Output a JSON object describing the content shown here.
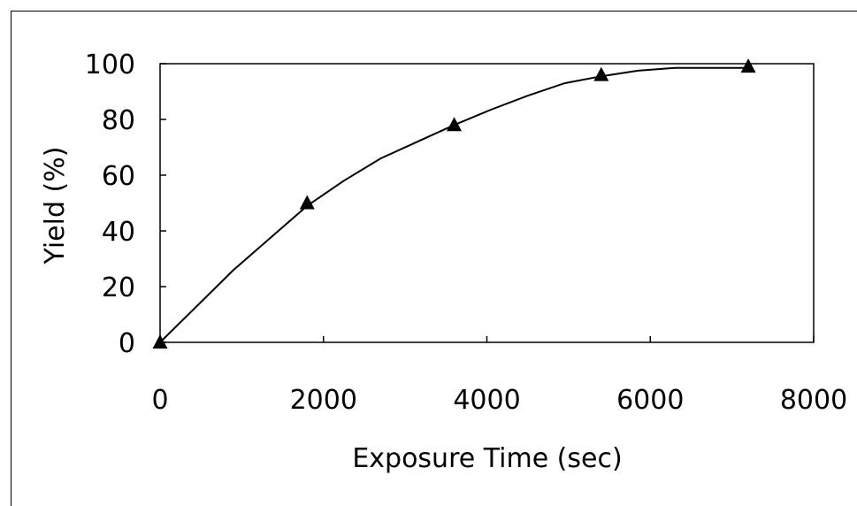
{
  "chart_data": {
    "type": "line",
    "title": "",
    "xlabel": "Exposure Time (sec)",
    "ylabel": "Yield (%)",
    "xlim": [
      0,
      8000
    ],
    "ylim": [
      0,
      100
    ],
    "x_ticks": [
      0,
      2000,
      4000,
      6000,
      8000
    ],
    "y_ticks": [
      0,
      20,
      40,
      60,
      80,
      100
    ],
    "grid": false,
    "legend": "none",
    "series": [
      {
        "role": "measured",
        "marker": "triangle",
        "x": [
          0,
          1800,
          3600,
          5400,
          7200
        ],
        "y": [
          0,
          50,
          78,
          96,
          99
        ]
      },
      {
        "role": "fitted-curve",
        "marker": "none",
        "x": [
          0,
          900,
          1800,
          2250,
          2700,
          3150,
          3600,
          4050,
          4500,
          4950,
          5400,
          5850,
          6300,
          6750,
          7200
        ],
        "y": [
          0,
          26,
          49,
          58,
          66,
          72,
          78,
          83.5,
          88.5,
          93,
          95.5,
          97.5,
          98.5,
          98.5,
          98.5
        ]
      }
    ],
    "colors": {
      "line": "#000000",
      "marker": "#000000",
      "axes": "#000000"
    }
  }
}
